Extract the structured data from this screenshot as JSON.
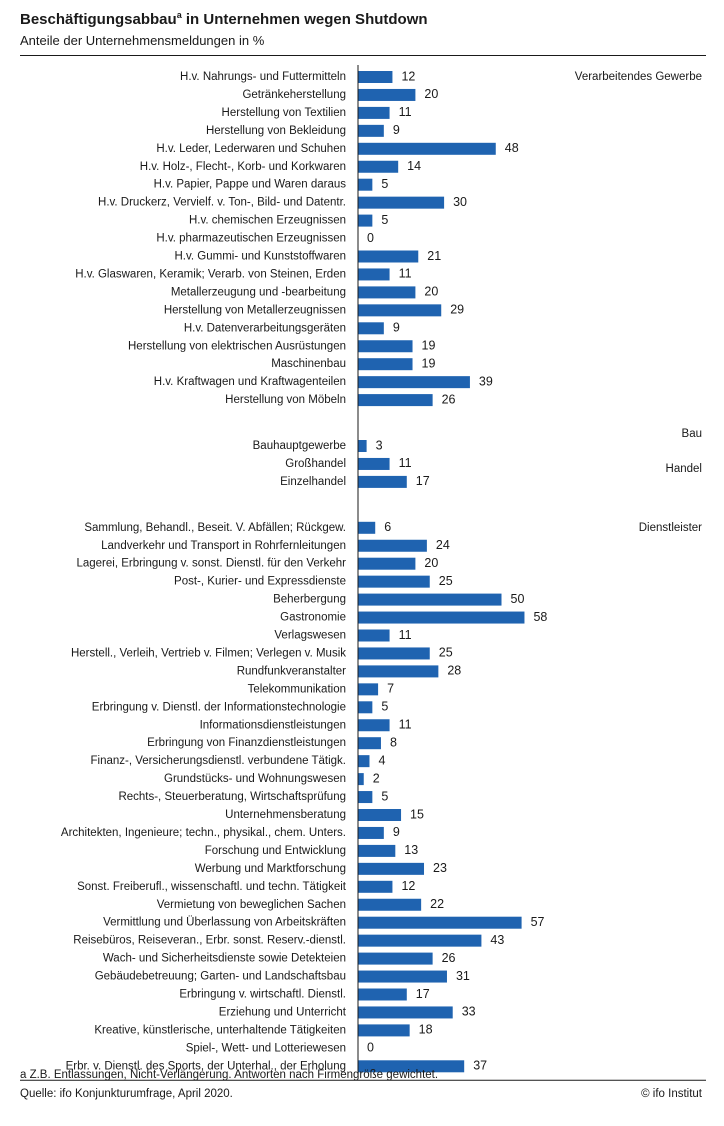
{
  "chart_data": {
    "type": "bar",
    "orientation": "horizontal",
    "title": "Beschäftigungsabbau",
    "title_superscript": "a",
    "title_rest": " in Unternehmen wegen Shutdown",
    "subtitle": "Anteile der Unternehmensmeldungen in %",
    "bar_color": "#1f63b0",
    "xlim": [
      0,
      58
    ],
    "groups": [
      {
        "name": "Verarbeitendes Gewerbe",
        "items": [
          {
            "label": "H.v. Nahrungs- und Futtermitteln",
            "value": 12
          },
          {
            "label": "Getränkeherstellung",
            "value": 20
          },
          {
            "label": "Herstellung von Textilien",
            "value": 11
          },
          {
            "label": "Herstellung von Bekleidung",
            "value": 9
          },
          {
            "label": "H.v. Leder, Lederwaren und Schuhen",
            "value": 48
          },
          {
            "label": "H.v. Holz-, Flecht-, Korb- und Korkwaren",
            "value": 14
          },
          {
            "label": "H.v. Papier, Pappe und Waren daraus",
            "value": 5
          },
          {
            "label": "H.v. Druckerz, Vervielf. v. Ton-, Bild- und Datentr.",
            "value": 30
          },
          {
            "label": "H.v. chemischen Erzeugnissen",
            "value": 5
          },
          {
            "label": "H.v. pharmazeutischen Erzeugnissen",
            "value": 0
          },
          {
            "label": "H.v. Gummi- und Kunststoffwaren",
            "value": 21
          },
          {
            "label": "H.v. Glaswaren, Keramik; Verarb. von Steinen, Erden",
            "value": 11
          },
          {
            "label": "Metallerzeugung und -bearbeitung",
            "value": 20
          },
          {
            "label": "Herstellung von Metallerzeugnissen",
            "value": 29
          },
          {
            "label": "H.v. Datenverarbeitungsgeräten",
            "value": 9
          },
          {
            "label": "Herstellung von elektrischen Ausrüstungen",
            "value": 19
          },
          {
            "label": "Maschinenbau",
            "value": 19
          },
          {
            "label": "H.v. Kraftwagen und Kraftwagenteilen",
            "value": 39
          },
          {
            "label": "Herstellung von Möbeln",
            "value": 26
          }
        ]
      },
      {
        "name": "Bau",
        "items": [
          {
            "label": "Bauhauptgewerbe",
            "value": 3
          }
        ]
      },
      {
        "name": "Handel",
        "items": [
          {
            "label": "Großhandel",
            "value": 11
          },
          {
            "label": "Einzelhandel",
            "value": 17
          }
        ]
      },
      {
        "name": "Dienstleister",
        "items": [
          {
            "label": "Sammlung, Behandl., Beseit. V. Abfällen; Rückgew.",
            "value": 6
          },
          {
            "label": "Landverkehr und Transport in Rohrfernleitungen",
            "value": 24
          },
          {
            "label": "Lagerei, Erbringung v. sonst. Dienstl. für den Verkehr",
            "value": 20
          },
          {
            "label": "Post-, Kurier- und Expressdienste",
            "value": 25
          },
          {
            "label": "Beherbergung",
            "value": 50
          },
          {
            "label": "Gastronomie",
            "value": 58
          },
          {
            "label": "Verlagswesen",
            "value": 11
          },
          {
            "label": "Herstell., Verleih, Vertrieb v. Filmen; Verlegen v. Musik",
            "value": 25
          },
          {
            "label": "Rundfunkveranstalter",
            "value": 28
          },
          {
            "label": "Telekommunikation",
            "value": 7
          },
          {
            "label": "Erbringung v. Dienstl. der Informationstechnologie",
            "value": 5
          },
          {
            "label": "Informationsdienstleistungen",
            "value": 11
          },
          {
            "label": "Erbringung von Finanzdienstleistungen",
            "value": 8
          },
          {
            "label": "Finanz-, Versicherungsdienstl. verbundene Tätigk.",
            "value": 4
          },
          {
            "label": "Grundstücks- und Wohnungswesen",
            "value": 2
          },
          {
            "label": "Rechts-, Steuerberatung, Wirtschaftsprüfung",
            "value": 5
          },
          {
            "label": "Unternehmensberatung",
            "value": 15
          },
          {
            "label": "Architekten, Ingenieure; techn., physikal., chem. Unters.",
            "value": 9
          },
          {
            "label": "Forschung und Entwicklung",
            "value": 13
          },
          {
            "label": "Werbung und Marktforschung",
            "value": 23
          },
          {
            "label": "Sonst. Freiberufl., wissenschaftl. und techn. Tätigkeit",
            "value": 12
          },
          {
            "label": "Vermietung von beweglichen Sachen",
            "value": 22
          },
          {
            "label": "Vermittlung und Überlassung von Arbeitskräften",
            "value": 57
          },
          {
            "label": "Reisebüros, Reiseveran., Erbr. sonst. Reserv.-dienstl.",
            "value": 43
          },
          {
            "label": "Wach- und Sicherheitsdienste sowie Detekteien",
            "value": 26
          },
          {
            "label": "Gebäudebetreuung; Garten- und Landschaftsbau",
            "value": 31
          },
          {
            "label": "Erbringung v. wirtschaftl. Dienstl.",
            "value": 17
          },
          {
            "label": "Erziehung und Unterricht",
            "value": 33
          },
          {
            "label": "Kreative, künstlerische, unterhaltende Tätigkeiten",
            "value": 18
          },
          {
            "label": "Spiel-, Wett- und Lotteriewesen",
            "value": 0
          },
          {
            "label": "Erbr. v. Dienstl. des Sports, der Unterhal., der Erholung",
            "value": 37
          }
        ]
      }
    ]
  },
  "footnote": "a Z.B. Entlassungen, Nicht-Verlängerung. Antworten nach Firmengröße gewichtet.",
  "source": "Quelle: ifo Konjunkturumfrage, April 2020.",
  "copyright": "© ifo Institut"
}
